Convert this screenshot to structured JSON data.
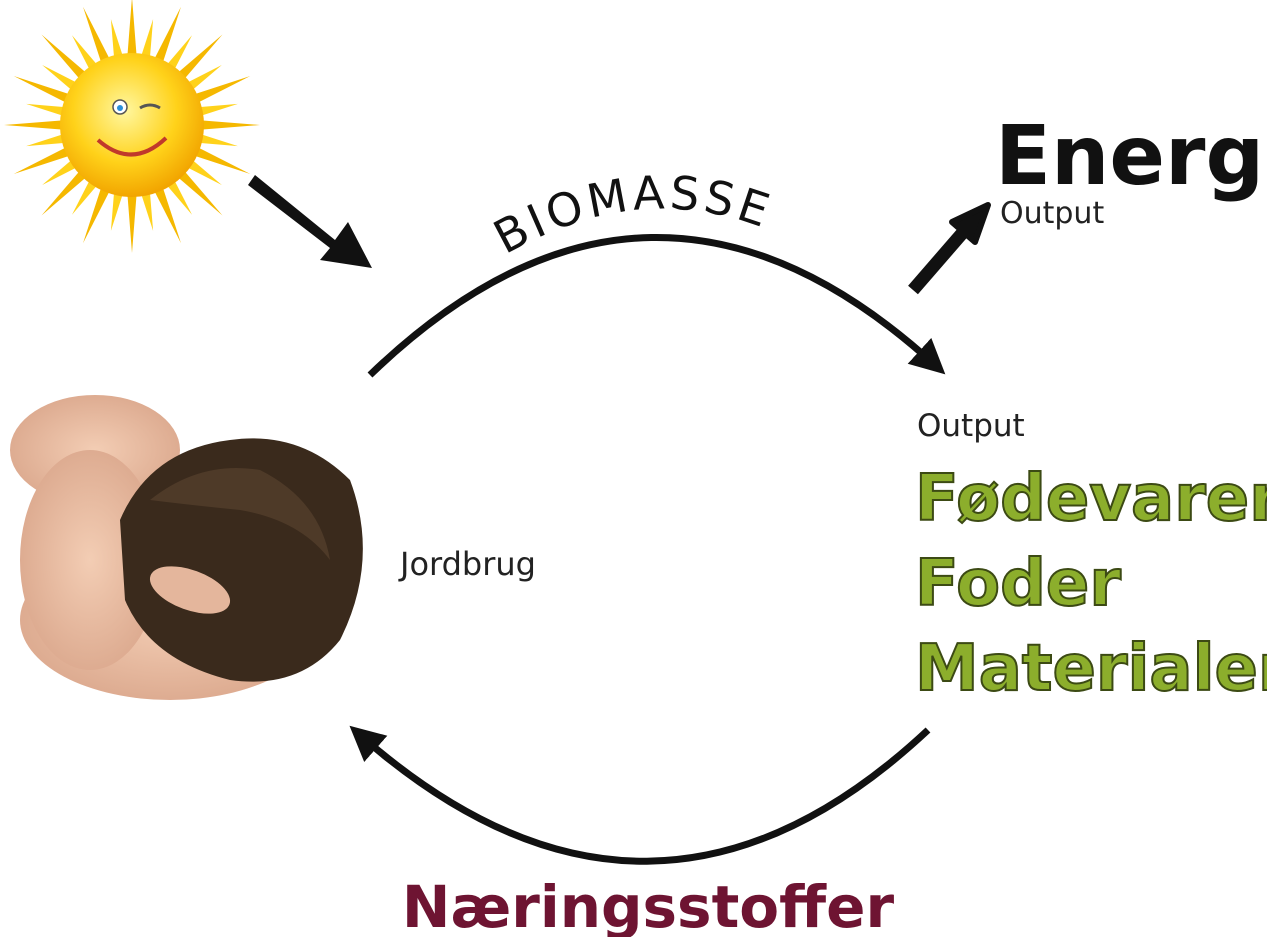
{
  "biomass": "BIOMASSE",
  "energy": {
    "title": "Energi",
    "caption": "Output"
  },
  "products": {
    "caption": "Output",
    "items": [
      "Fødevarer",
      "Foder",
      "Materialer"
    ]
  },
  "farming": "Jordbrug",
  "nutrients": "Næringsstoffer"
}
